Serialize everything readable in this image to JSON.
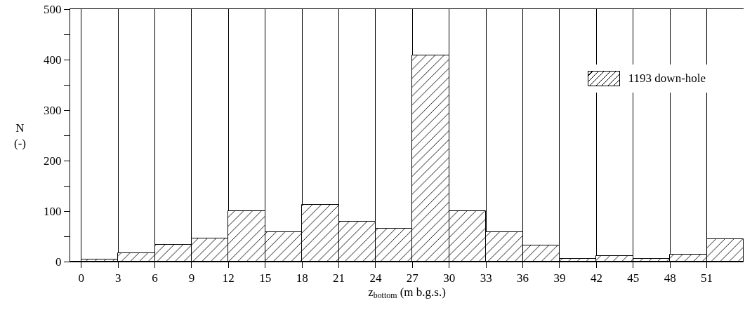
{
  "chart_data": {
    "type": "histogram",
    "xlabel": "z$_{bottom}$ (m b.g.s.)",
    "ylabel": "N\n(-)",
    "bins": [
      0,
      3,
      6,
      9,
      12,
      15,
      18,
      21,
      24,
      27,
      30,
      33,
      36,
      39,
      42,
      45,
      48,
      51,
      54
    ],
    "series": [
      {
        "name": "1193 down-hole",
        "color": "#000000",
        "values": [
          4,
          16,
          33,
          46,
          100,
          58,
          113,
          79,
          65,
          408,
          100,
          58,
          32,
          6,
          11,
          5,
          14,
          45
        ]
      }
    ],
    "xlim": [
      -0.9,
      54
    ],
    "xticks": [
      0,
      3,
      6,
      9,
      12,
      15,
      18,
      21,
      24,
      27,
      30,
      33,
      36,
      39,
      42,
      45,
      48,
      51
    ],
    "ylim": [
      0,
      500
    ],
    "yticks": [
      0,
      {
        "value": 50,
        "label": null
      },
      100,
      {
        "value": 150,
        "label": null
      },
      200,
      {
        "value": 250,
        "label": null
      },
      300,
      {
        "value": 350,
        "label": null
      },
      400,
      {
        "value": 450,
        "label": null
      },
      500
    ],
    "grid": "x",
    "legend": "top right"
  }
}
